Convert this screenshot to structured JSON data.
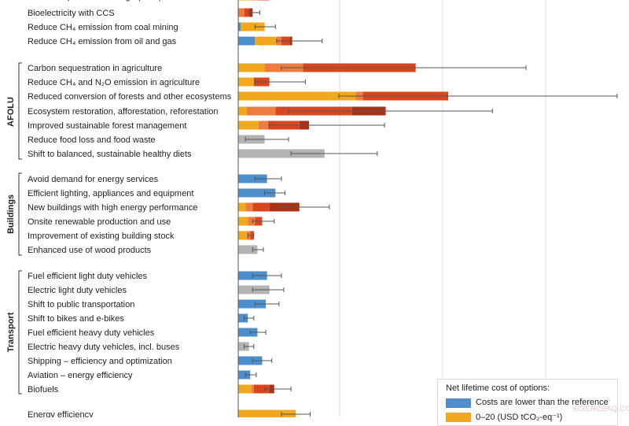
{
  "chart_data": {
    "type": "bar",
    "orientation": "horizontal-stacked",
    "legend": {
      "title": "Net lifetime cost of options:",
      "placement": "bottom-right",
      "items": [
        {
          "label": "Costs are lower than the reference",
          "color": "#4d8fcc"
        },
        {
          "label": "0–20 (USD tCO₂-eq⁻¹)",
          "color": "#f2a81d"
        }
      ]
    },
    "segment_colors": {
      "lower": "#4d8fcc",
      "c0_20": "#f2a81d",
      "c20_50": "#ee7d3d",
      "c50_100": "#d9461e",
      "c100_200": "#a93216",
      "unknown": "#b3b3b3"
    },
    "gridlines": true,
    "groups": [
      {
        "name": "",
        "rows": [
          {
            "label": "Carbon capture and storage (CCS)",
            "segments": [
              {
                "c": "c0_20",
                "v": 0.6
              },
              {
                "c": "c20_50",
                "v": 0.3
              },
              {
                "c": "c50_100",
                "v": 0.4
              }
            ],
            "error": [
              0.9,
              1.8
            ]
          },
          {
            "label": "Bioelectricity with CCS",
            "segments": [
              {
                "c": "c20_50",
                "v": 0.25
              },
              {
                "c": "c50_100",
                "v": 0.2
              },
              {
                "c": "c100_200",
                "v": 0.15
              }
            ],
            "error": [
              0.45,
              0.9
            ]
          },
          {
            "label": "Reduce CH₄ emission from coal mining",
            "segments": [
              {
                "c": "lower",
                "v": 0.1
              },
              {
                "c": "c0_20",
                "v": 1.0
              }
            ],
            "error": [
              0.7,
              1.55
            ]
          },
          {
            "label": "Reduce CH₄ emission from oil and gas",
            "segments": [
              {
                "c": "lower",
                "v": 0.7
              },
              {
                "c": "c0_20",
                "v": 0.9
              },
              {
                "c": "c20_50",
                "v": 0.2
              },
              {
                "c": "c50_100",
                "v": 0.35
              },
              {
                "c": "c100_200",
                "v": 0.1
              }
            ],
            "error": [
              1.6,
              3.5
            ]
          }
        ]
      },
      {
        "name": "AFOLU",
        "rows": [
          {
            "label": "Carbon sequestration in agriculture",
            "segments": [
              {
                "c": "c0_20",
                "v": 1.1
              },
              {
                "c": "c20_50",
                "v": 1.6
              },
              {
                "c": "c50_100",
                "v": 4.7
              }
            ],
            "error": [
              1.8,
              12.0
            ]
          },
          {
            "label": "Reduce CH₄ and N₂O emission in agriculture",
            "segments": [
              {
                "c": "c0_20",
                "v": 0.65
              },
              {
                "c": "c50_100",
                "v": 0.65
              }
            ],
            "error": [
              0.7,
              2.8
            ]
          },
          {
            "label": "Reduced conversion of forests and other ecosystems",
            "segments": [
              {
                "c": "c0_20",
                "v": 4.9
              },
              {
                "c": "c20_50",
                "v": 0.3
              },
              {
                "c": "c50_100",
                "v": 3.5
              },
              {
                "c": "c100_200",
                "v": 0.05
              }
            ],
            "error": [
              4.2,
              15.8
            ]
          },
          {
            "label": "Ecosystem restoration, afforestation, reforestation",
            "segments": [
              {
                "c": "c0_20",
                "v": 0.35
              },
              {
                "c": "c20_50",
                "v": 1.2
              },
              {
                "c": "c50_100",
                "v": 3.2
              },
              {
                "c": "c100_200",
                "v": 1.4
              }
            ],
            "error": [
              2.1,
              10.6
            ]
          },
          {
            "label": "Improved sustainable forest management",
            "segments": [
              {
                "c": "c0_20",
                "v": 0.85
              },
              {
                "c": "c20_50",
                "v": 0.4
              },
              {
                "c": "c50_100",
                "v": 1.3
              },
              {
                "c": "c100_200",
                "v": 0.4
              }
            ],
            "error": [
              1.3,
              6.1
            ]
          },
          {
            "label": "Reduce food loss and food waste",
            "segments": [
              {
                "c": "unknown",
                "v": 1.1
              }
            ],
            "error": [
              0.3,
              2.1
            ]
          },
          {
            "label": "Shift to balanced, sustainable healthy diets",
            "segments": [
              {
                "c": "unknown",
                "v": 3.6
              }
            ],
            "error": [
              2.2,
              5.8
            ]
          }
        ]
      },
      {
        "name": "Buildings",
        "rows": [
          {
            "label": "Avoid demand for energy services",
            "segments": [
              {
                "c": "lower",
                "v": 1.2
              }
            ],
            "error": [
              0.7,
              1.8
            ]
          },
          {
            "label": "Efficient lighting, appliances and equipment",
            "segments": [
              {
                "c": "lower",
                "v": 1.55
              }
            ],
            "error": [
              1.1,
              1.95
            ]
          },
          {
            "label": "New buildings with high energy performance",
            "segments": [
              {
                "c": "c0_20",
                "v": 0.3
              },
              {
                "c": "c20_50",
                "v": 0.3
              },
              {
                "c": "c50_100",
                "v": 0.7
              },
              {
                "c": "c100_200",
                "v": 1.25
              }
            ],
            "error": [
              1.8,
              3.8
            ]
          },
          {
            "label": "Onsite renewable production and use",
            "segments": [
              {
                "c": "c0_20",
                "v": 0.4
              },
              {
                "c": "c20_50",
                "v": 0.3
              },
              {
                "c": "c50_100",
                "v": 0.3
              }
            ],
            "error": [
              0.6,
              1.5
            ]
          },
          {
            "label": "Improvement of existing building stock",
            "segments": [
              {
                "c": "c0_20",
                "v": 0.35
              },
              {
                "c": "c20_50",
                "v": 0.15
              },
              {
                "c": "c50_100",
                "v": 0.15
              }
            ],
            "error": [
              0.4,
              0.65
            ]
          },
          {
            "label": "Enhanced use of wood products",
            "segments": [
              {
                "c": "unknown",
                "v": 0.8
              }
            ],
            "error": [
              0.6,
              1.05
            ]
          }
        ]
      },
      {
        "name": "Transport",
        "rows": [
          {
            "label": "Fuel efficient light duty vehicles",
            "segments": [
              {
                "c": "lower",
                "v": 1.2
              }
            ],
            "error": [
              0.6,
              1.8
            ]
          },
          {
            "label": "Electric light duty vehicles",
            "segments": [
              {
                "c": "unknown",
                "v": 1.3
              }
            ],
            "error": [
              0.6,
              1.9
            ]
          },
          {
            "label": "Shift to public transportation",
            "segments": [
              {
                "c": "lower",
                "v": 1.15
              }
            ],
            "error": [
              0.7,
              1.7
            ]
          },
          {
            "label": "Shift to bikes and e-bikes",
            "segments": [
              {
                "c": "lower",
                "v": 0.4
              }
            ],
            "error": [
              0.25,
              0.65
            ]
          },
          {
            "label": "Fuel efficient heavy duty vehicles",
            "segments": [
              {
                "c": "lower",
                "v": 0.8
              }
            ],
            "error": [
              0.5,
              1.15
            ]
          },
          {
            "label": "Electric heavy duty vehicles, incl. buses",
            "segments": [
              {
                "c": "unknown",
                "v": 0.45
              }
            ],
            "error": [
              0.25,
              0.65
            ]
          },
          {
            "label": "Shipping – efficiency and optimization",
            "segments": [
              {
                "c": "lower",
                "v": 1.0
              }
            ],
            "error": [
              0.6,
              1.4
            ]
          },
          {
            "label": "Aviation – energy efficiency",
            "segments": [
              {
                "c": "lower",
                "v": 0.5
              }
            ],
            "error": [
              0.3,
              0.75
            ]
          },
          {
            "label": "Biofuels",
            "segments": [
              {
                "c": "c0_20",
                "v": 0.55
              },
              {
                "c": "c20_50",
                "v": 0.1
              },
              {
                "c": "c50_100",
                "v": 0.65
              },
              {
                "c": "c100_200",
                "v": 0.2
              }
            ],
            "error": [
              1.1,
              2.2
            ]
          }
        ]
      },
      {
        "name": "",
        "rows": [
          {
            "label": "Energy efficiency",
            "segments": [
              {
                "c": "c0_20",
                "v": 2.4
              }
            ],
            "error": [
              1.8,
              3.0
            ]
          }
        ]
      }
    ]
  },
  "watermark": "SCIENCEAQ.COM"
}
